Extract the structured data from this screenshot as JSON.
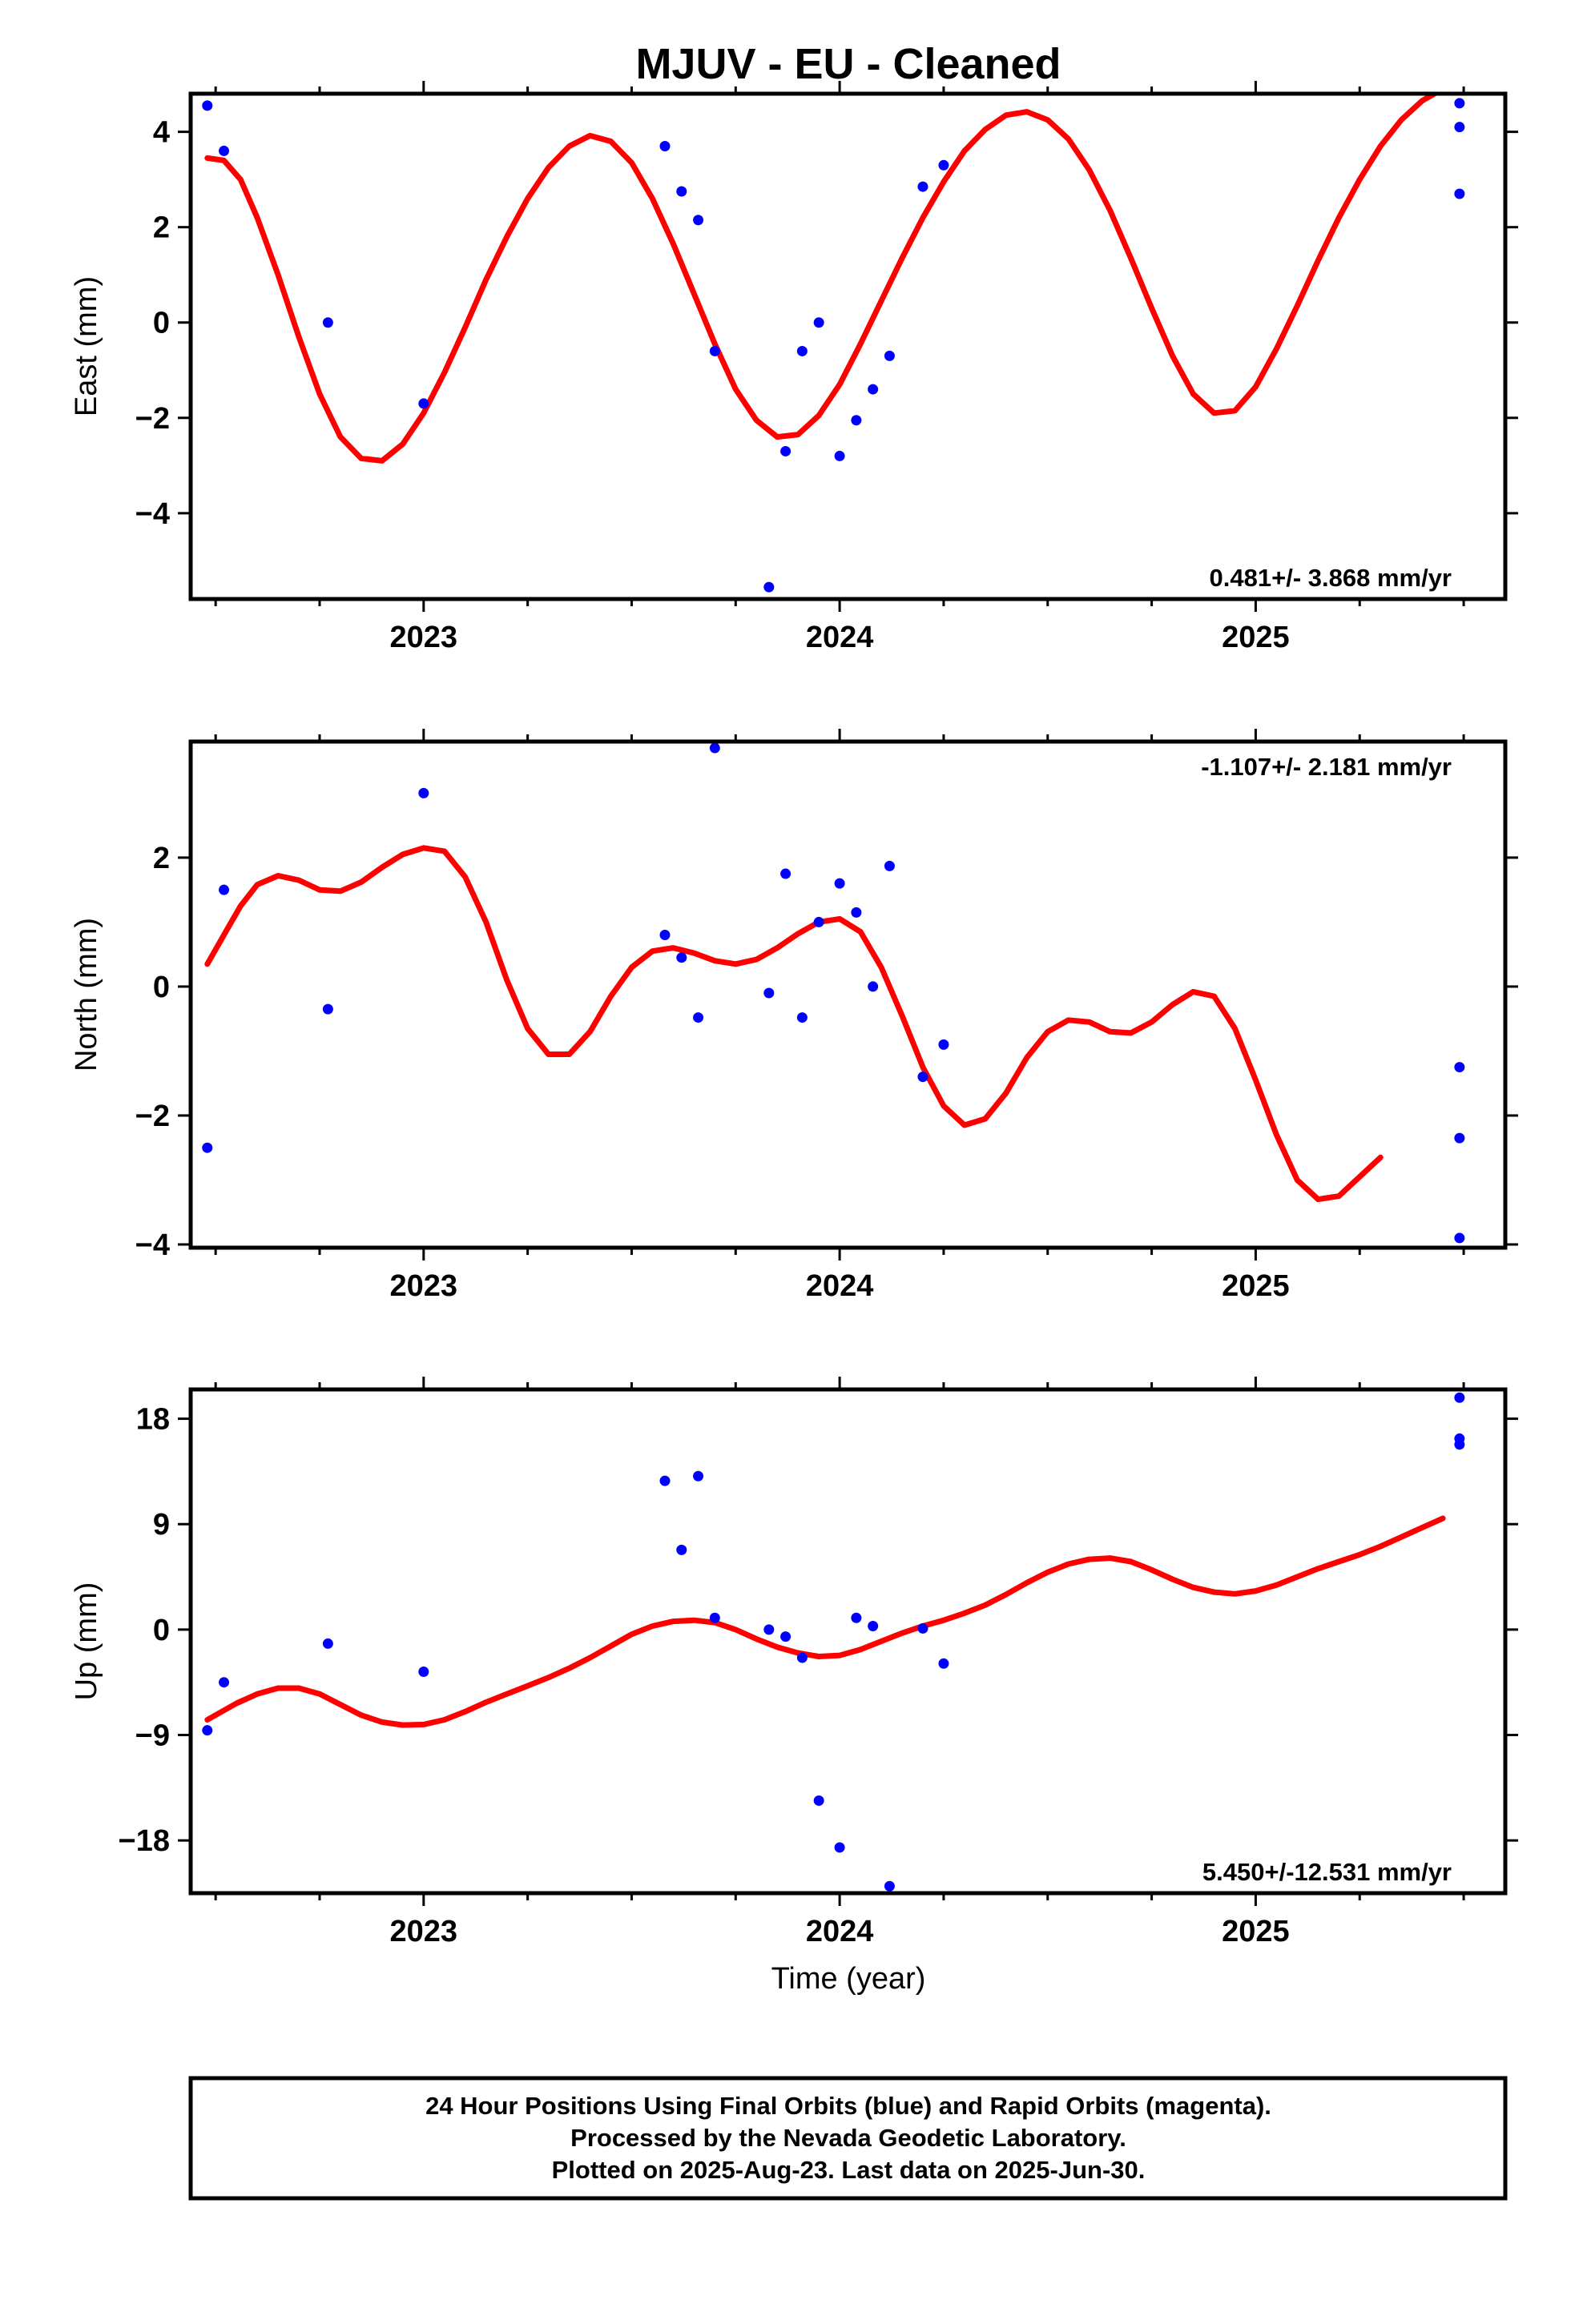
{
  "title": "MJUV  - EU - Cleaned",
  "xlabel": "Time (year)",
  "x_tick_labels": [
    "2023",
    "2024",
    "2025"
  ],
  "footer_lines": [
    "24 Hour Positions Using Final Orbits (blue) and Rapid Orbits (magenta).",
    "Processed by the Nevada Geodetic Laboratory.",
    "Plotted on 2025-Aug-23. Last data on 2025-Jun-30."
  ],
  "colors": {
    "points": "#0000ff",
    "fit": "#ff0000",
    "frame": "#000000"
  },
  "chart_data": [
    {
      "type": "scatter",
      "ylabel": "East (mm)",
      "rate_text": "0.481+/- 3.868 mm/yr",
      "xlim": [
        2022.44,
        2025.6
      ],
      "ylim": [
        -5.8,
        4.8
      ],
      "yticks": [
        -4,
        -2,
        0,
        2,
        4
      ],
      "ytick_labels": [
        "−4",
        "−2",
        "0",
        "2",
        "4"
      ],
      "points": [
        [
          2022.48,
          4.55
        ],
        [
          2022.52,
          3.6
        ],
        [
          2022.77,
          0.0
        ],
        [
          2023.0,
          -1.7
        ],
        [
          2023.58,
          3.7
        ],
        [
          2023.62,
          2.75
        ],
        [
          2023.66,
          2.15
        ],
        [
          2023.7,
          -0.6
        ],
        [
          2023.83,
          -5.55
        ],
        [
          2023.87,
          -2.7
        ],
        [
          2023.91,
          -0.6
        ],
        [
          2023.95,
          0.0
        ],
        [
          2024.0,
          -2.8
        ],
        [
          2024.04,
          -2.05
        ],
        [
          2024.08,
          -1.4
        ],
        [
          2024.12,
          -0.7
        ],
        [
          2024.2,
          2.85
        ],
        [
          2024.25,
          3.3
        ],
        [
          2025.49,
          4.6
        ],
        [
          2025.49,
          4.1
        ],
        [
          2025.49,
          2.7
        ]
      ],
      "fit": [
        [
          2022.48,
          3.45
        ],
        [
          2022.52,
          3.4
        ],
        [
          2022.56,
          3.0
        ],
        [
          2022.6,
          2.2
        ],
        [
          2022.65,
          1.0
        ],
        [
          2022.7,
          -0.3
        ],
        [
          2022.75,
          -1.5
        ],
        [
          2022.8,
          -2.4
        ],
        [
          2022.85,
          -2.85
        ],
        [
          2022.9,
          -2.9
        ],
        [
          2022.95,
          -2.55
        ],
        [
          2023.0,
          -1.9
        ],
        [
          2023.05,
          -1.05
        ],
        [
          2023.1,
          -0.1
        ],
        [
          2023.15,
          0.9
        ],
        [
          2023.2,
          1.8
        ],
        [
          2023.25,
          2.6
        ],
        [
          2023.3,
          3.25
        ],
        [
          2023.35,
          3.7
        ],
        [
          2023.4,
          3.92
        ],
        [
          2023.45,
          3.8
        ],
        [
          2023.5,
          3.35
        ],
        [
          2023.55,
          2.6
        ],
        [
          2023.6,
          1.65
        ],
        [
          2023.65,
          0.6
        ],
        [
          2023.7,
          -0.45
        ],
        [
          2023.75,
          -1.4
        ],
        [
          2023.8,
          -2.05
        ],
        [
          2023.85,
          -2.4
        ],
        [
          2023.9,
          -2.35
        ],
        [
          2023.95,
          -1.95
        ],
        [
          2024.0,
          -1.3
        ],
        [
          2024.05,
          -0.45
        ],
        [
          2024.1,
          0.45
        ],
        [
          2024.15,
          1.35
        ],
        [
          2024.2,
          2.2
        ],
        [
          2024.25,
          2.95
        ],
        [
          2024.3,
          3.6
        ],
        [
          2024.35,
          4.05
        ],
        [
          2024.4,
          4.35
        ],
        [
          2024.45,
          4.42
        ],
        [
          2024.5,
          4.25
        ],
        [
          2024.55,
          3.85
        ],
        [
          2024.6,
          3.2
        ],
        [
          2024.65,
          2.35
        ],
        [
          2024.7,
          1.35
        ],
        [
          2024.75,
          0.3
        ],
        [
          2024.8,
          -0.7
        ],
        [
          2024.85,
          -1.5
        ],
        [
          2024.9,
          -1.9
        ],
        [
          2024.95,
          -1.85
        ],
        [
          2025.0,
          -1.35
        ],
        [
          2025.05,
          -0.55
        ],
        [
          2025.1,
          0.35
        ],
        [
          2025.15,
          1.3
        ],
        [
          2025.2,
          2.2
        ],
        [
          2025.25,
          3.0
        ],
        [
          2025.3,
          3.7
        ],
        [
          2025.35,
          4.25
        ],
        [
          2025.4,
          4.65
        ],
        [
          2025.44,
          4.85
        ],
        [
          2025.47,
          4.95
        ]
      ]
    },
    {
      "type": "scatter",
      "ylabel": "North (mm)",
      "rate_text": "-1.107+/- 2.181 mm/yr",
      "xlim": [
        2022.44,
        2025.6
      ],
      "ylim": [
        -4.05,
        3.8
      ],
      "yticks": [
        -4,
        -2,
        0,
        2
      ],
      "ytick_labels": [
        "−4",
        "−2",
        "0",
        "2"
      ],
      "points": [
        [
          2022.48,
          -2.5
        ],
        [
          2022.52,
          1.5
        ],
        [
          2022.77,
          -0.35
        ],
        [
          2023.0,
          3.0
        ],
        [
          2023.58,
          0.8
        ],
        [
          2023.62,
          0.45
        ],
        [
          2023.66,
          -0.48
        ],
        [
          2023.7,
          3.7
        ],
        [
          2023.83,
          -0.1
        ],
        [
          2023.87,
          1.75
        ],
        [
          2023.91,
          -0.48
        ],
        [
          2023.95,
          1.0
        ],
        [
          2024.0,
          1.6
        ],
        [
          2024.04,
          1.15
        ],
        [
          2024.08,
          0.0
        ],
        [
          2024.12,
          1.87
        ],
        [
          2024.2,
          -1.4
        ],
        [
          2024.25,
          -0.9
        ],
        [
          2025.49,
          -1.25
        ],
        [
          2025.49,
          -2.35
        ],
        [
          2025.49,
          -3.9
        ]
      ],
      "fit": [
        [
          2022.48,
          0.35
        ],
        [
          2022.52,
          0.8
        ],
        [
          2022.56,
          1.25
        ],
        [
          2022.6,
          1.58
        ],
        [
          2022.65,
          1.72
        ],
        [
          2022.7,
          1.65
        ],
        [
          2022.75,
          1.5
        ],
        [
          2022.8,
          1.48
        ],
        [
          2022.85,
          1.62
        ],
        [
          2022.9,
          1.85
        ],
        [
          2022.95,
          2.05
        ],
        [
          2023.0,
          2.15
        ],
        [
          2023.05,
          2.1
        ],
        [
          2023.1,
          1.7
        ],
        [
          2023.15,
          1.0
        ],
        [
          2023.2,
          0.1
        ],
        [
          2023.25,
          -0.65
        ],
        [
          2023.3,
          -1.05
        ],
        [
          2023.35,
          -1.05
        ],
        [
          2023.4,
          -0.7
        ],
        [
          2023.45,
          -0.15
        ],
        [
          2023.5,
          0.3
        ],
        [
          2023.55,
          0.55
        ],
        [
          2023.6,
          0.6
        ],
        [
          2023.65,
          0.52
        ],
        [
          2023.7,
          0.4
        ],
        [
          2023.75,
          0.35
        ],
        [
          2023.8,
          0.42
        ],
        [
          2023.85,
          0.6
        ],
        [
          2023.9,
          0.82
        ],
        [
          2023.95,
          1.0
        ],
        [
          2024.0,
          1.05
        ],
        [
          2024.05,
          0.85
        ],
        [
          2024.1,
          0.3
        ],
        [
          2024.15,
          -0.45
        ],
        [
          2024.2,
          -1.25
        ],
        [
          2024.25,
          -1.85
        ],
        [
          2024.3,
          -2.15
        ],
        [
          2024.35,
          -2.05
        ],
        [
          2024.4,
          -1.65
        ],
        [
          2024.45,
          -1.1
        ],
        [
          2024.5,
          -0.7
        ],
        [
          2024.55,
          -0.52
        ],
        [
          2024.6,
          -0.55
        ],
        [
          2024.65,
          -0.7
        ],
        [
          2024.7,
          -0.72
        ],
        [
          2024.75,
          -0.55
        ],
        [
          2024.8,
          -0.28
        ],
        [
          2024.85,
          -0.08
        ],
        [
          2024.9,
          -0.15
        ],
        [
          2024.95,
          -0.65
        ],
        [
          2025.0,
          -1.45
        ],
        [
          2025.05,
          -2.3
        ],
        [
          2025.1,
          -3.0
        ],
        [
          2025.15,
          -3.3
        ],
        [
          2025.2,
          -3.25
        ],
        [
          2025.25,
          -2.95
        ],
        [
          2025.3,
          -2.65
        ]
      ]
    },
    {
      "type": "scatter",
      "ylabel": "Up (mm)",
      "rate_text": "5.450+/-12.531 mm/yr",
      "xlim": [
        2022.44,
        2025.6
      ],
      "ylim": [
        -22.5,
        20.5
      ],
      "yticks": [
        -18,
        -9,
        0,
        9,
        18
      ],
      "ytick_labels": [
        "−18",
        "−9",
        "0",
        "9",
        "18"
      ],
      "points": [
        [
          2022.48,
          -8.6
        ],
        [
          2022.52,
          -4.5
        ],
        [
          2022.77,
          -1.2
        ],
        [
          2023.0,
          -3.6
        ],
        [
          2023.58,
          12.7
        ],
        [
          2023.62,
          6.8
        ],
        [
          2023.66,
          13.1
        ],
        [
          2023.7,
          1.0
        ],
        [
          2023.83,
          0.0
        ],
        [
          2023.87,
          -0.6
        ],
        [
          2023.91,
          -2.4
        ],
        [
          2023.95,
          -14.6
        ],
        [
          2024.0,
          -18.6
        ],
        [
          2024.04,
          1.0
        ],
        [
          2024.08,
          0.3
        ],
        [
          2024.12,
          -21.9
        ],
        [
          2024.2,
          0.1
        ],
        [
          2024.25,
          -2.9
        ],
        [
          2025.49,
          19.8
        ],
        [
          2025.49,
          16.3
        ],
        [
          2025.49,
          15.8
        ]
      ],
      "fit": [
        [
          2022.48,
          -7.7
        ],
        [
          2022.55,
          -6.3
        ],
        [
          2022.6,
          -5.5
        ],
        [
          2022.65,
          -5.0
        ],
        [
          2022.7,
          -5.0
        ],
        [
          2022.75,
          -5.5
        ],
        [
          2022.8,
          -6.4
        ],
        [
          2022.85,
          -7.3
        ],
        [
          2022.9,
          -7.9
        ],
        [
          2022.95,
          -8.15
        ],
        [
          2023.0,
          -8.1
        ],
        [
          2023.05,
          -7.7
        ],
        [
          2023.1,
          -7.0
        ],
        [
          2023.15,
          -6.2
        ],
        [
          2023.2,
          -5.5
        ],
        [
          2023.25,
          -4.8
        ],
        [
          2023.3,
          -4.1
        ],
        [
          2023.35,
          -3.3
        ],
        [
          2023.4,
          -2.4
        ],
        [
          2023.45,
          -1.4
        ],
        [
          2023.5,
          -0.4
        ],
        [
          2023.55,
          0.3
        ],
        [
          2023.6,
          0.7
        ],
        [
          2023.65,
          0.8
        ],
        [
          2023.7,
          0.6
        ],
        [
          2023.75,
          0.0
        ],
        [
          2023.8,
          -0.8
        ],
        [
          2023.85,
          -1.5
        ],
        [
          2023.9,
          -2.0
        ],
        [
          2023.95,
          -2.3
        ],
        [
          2024.0,
          -2.2
        ],
        [
          2024.05,
          -1.7
        ],
        [
          2024.1,
          -1.0
        ],
        [
          2024.15,
          -0.3
        ],
        [
          2024.2,
          0.3
        ],
        [
          2024.25,
          0.8
        ],
        [
          2024.3,
          1.4
        ],
        [
          2024.35,
          2.1
        ],
        [
          2024.4,
          3.0
        ],
        [
          2024.45,
          4.0
        ],
        [
          2024.5,
          4.9
        ],
        [
          2024.55,
          5.6
        ],
        [
          2024.6,
          6.0
        ],
        [
          2024.65,
          6.1
        ],
        [
          2024.7,
          5.8
        ],
        [
          2024.75,
          5.1
        ],
        [
          2024.8,
          4.3
        ],
        [
          2024.85,
          3.6
        ],
        [
          2024.9,
          3.2
        ],
        [
          2024.95,
          3.05
        ],
        [
          2025.0,
          3.3
        ],
        [
          2025.05,
          3.8
        ],
        [
          2025.1,
          4.5
        ],
        [
          2025.15,
          5.2
        ],
        [
          2025.2,
          5.8
        ],
        [
          2025.25,
          6.4
        ],
        [
          2025.3,
          7.1
        ],
        [
          2025.35,
          7.9
        ],
        [
          2025.4,
          8.7
        ],
        [
          2025.45,
          9.5
        ]
      ]
    }
  ]
}
